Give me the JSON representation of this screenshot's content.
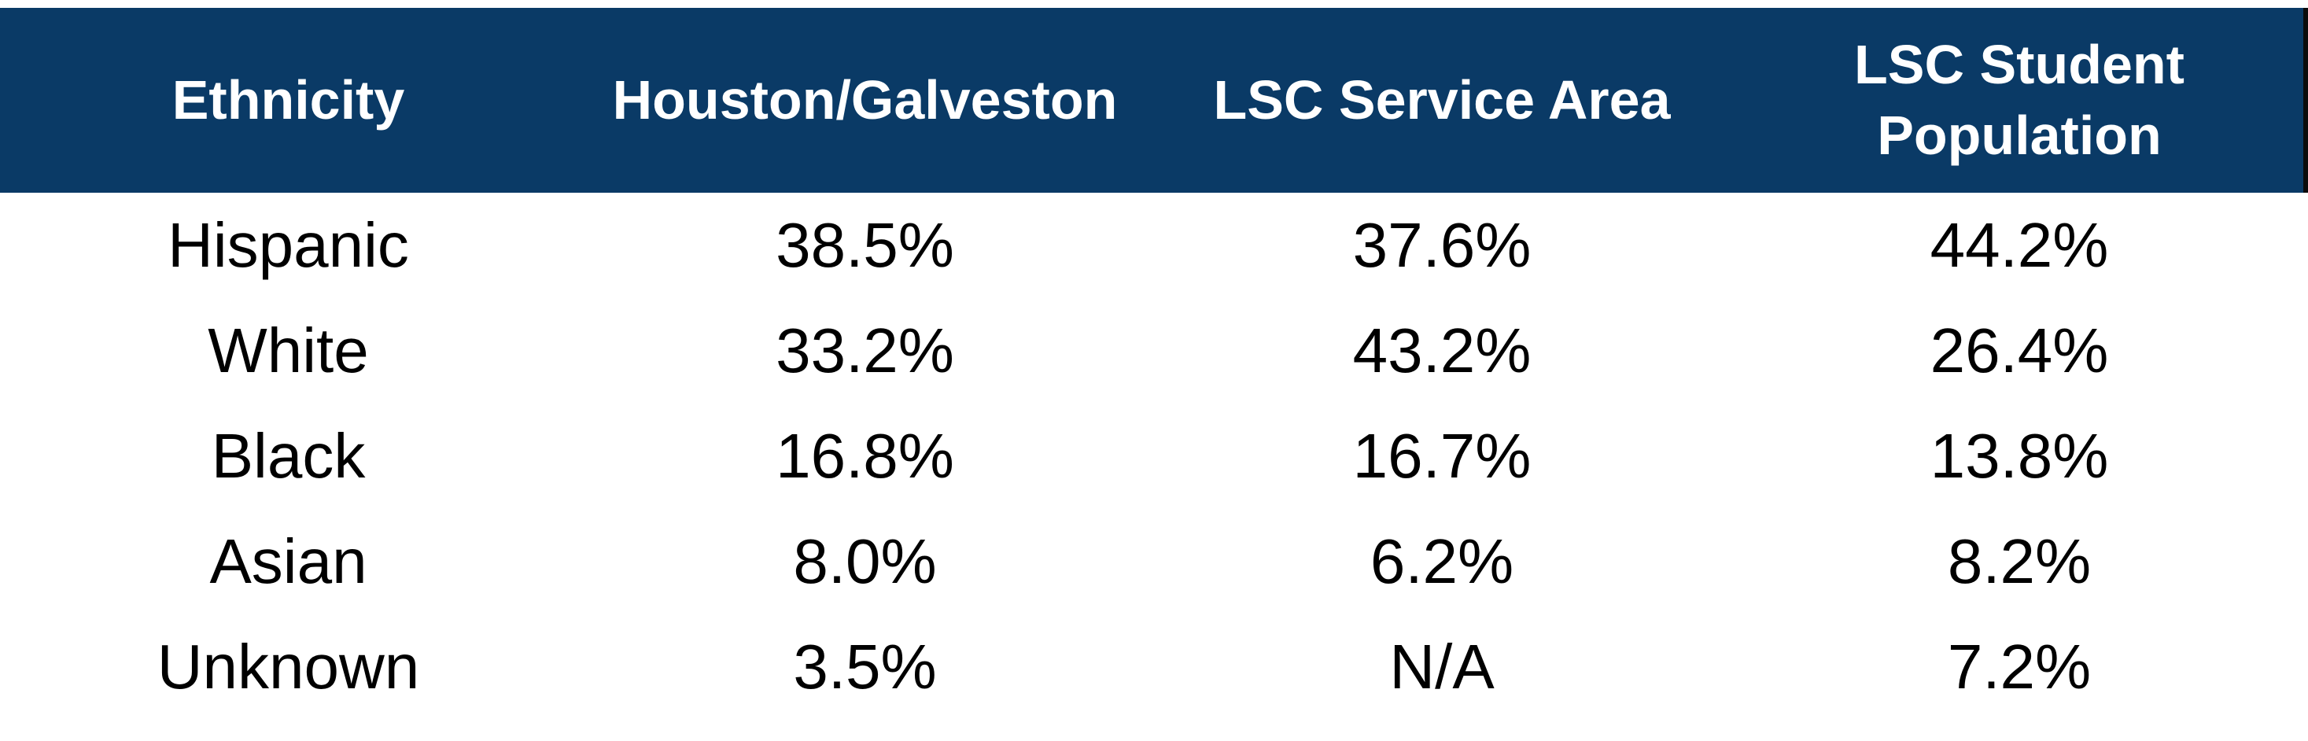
{
  "chart_data": {
    "type": "table",
    "columns": [
      "Ethnicity",
      "Houston/Galveston",
      "LSC Service Area",
      "LSC Student Population"
    ],
    "rows": [
      [
        "Hispanic",
        "38.5%",
        "37.6%",
        "44.2%"
      ],
      [
        "White",
        "33.2%",
        "43.2%",
        "26.4%"
      ],
      [
        "Black",
        "16.8%",
        "16.7%",
        "13.8%"
      ],
      [
        "Asian",
        "8.0%",
        "6.2%",
        "8.2%"
      ],
      [
        "Unknown",
        "3.5%",
        "N/A",
        "7.2%"
      ]
    ],
    "title": "",
    "legend": false,
    "grid": false
  },
  "colors": {
    "header_bg": "#0a3a66",
    "header_text": "#ffffff",
    "body_text": "#000000",
    "background": "#ffffff",
    "header_edge_line": "#0b0b0b"
  }
}
